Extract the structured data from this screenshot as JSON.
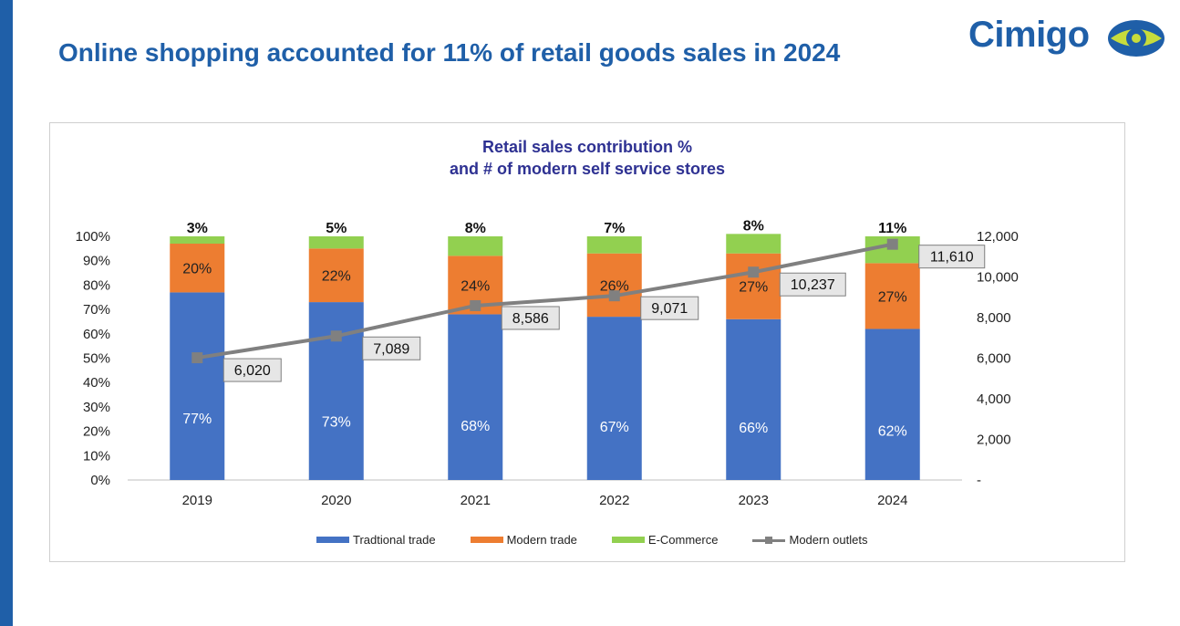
{
  "slide": {
    "title": "Online shopping accounted for 11% of retail goods sales in 2024",
    "logo_text": "Cimigo"
  },
  "colors": {
    "traditional": "#4472c4",
    "modern": "#ed7d31",
    "ecommerce": "#92d050",
    "outlets": "#808080",
    "title": "#1f5fa8",
    "chart_title": "#2e3192"
  },
  "chart_data": {
    "type": "bar",
    "stacked": true,
    "title": "Retail sales contribution %",
    "subtitle": "and # of modern self service stores",
    "categories": [
      "2019",
      "2020",
      "2021",
      "2022",
      "2023",
      "2024"
    ],
    "series": [
      {
        "name": "Tradtional trade",
        "values": [
          77,
          73,
          68,
          67,
          66,
          62
        ],
        "labels": [
          "77%",
          "73%",
          "68%",
          "67%",
          "66%",
          "62%"
        ]
      },
      {
        "name": "Modern trade",
        "values": [
          20,
          22,
          24,
          26,
          27,
          27
        ],
        "labels": [
          "20%",
          "22%",
          "24%",
          "26%",
          "27%",
          "27%"
        ]
      },
      {
        "name": "E-Commerce",
        "values": [
          3,
          5,
          8,
          7,
          8,
          11
        ],
        "labels": [
          "3%",
          "5%",
          "8%",
          "7%",
          "8%",
          "11%"
        ]
      }
    ],
    "line_series": {
      "name": "Modern outlets",
      "type": "line",
      "axis": "right",
      "values": [
        6020,
        7089,
        8586,
        9071,
        10237,
        11610
      ],
      "labels": [
        "6,020",
        "7,089",
        "8,586",
        "9,071",
        "10,237",
        "11,610"
      ]
    },
    "left_axis": {
      "ylim": [
        0,
        100
      ],
      "ticks": [
        "0%",
        "10%",
        "20%",
        "30%",
        "40%",
        "50%",
        "60%",
        "70%",
        "80%",
        "90%",
        "100%"
      ]
    },
    "right_axis": {
      "ylim": [
        0,
        12000
      ],
      "ticks": [
        "-",
        "2,000",
        "4,000",
        "6,000",
        "8,000",
        "10,000",
        "12,000"
      ]
    },
    "grid": false,
    "legend_position": "bottom"
  }
}
